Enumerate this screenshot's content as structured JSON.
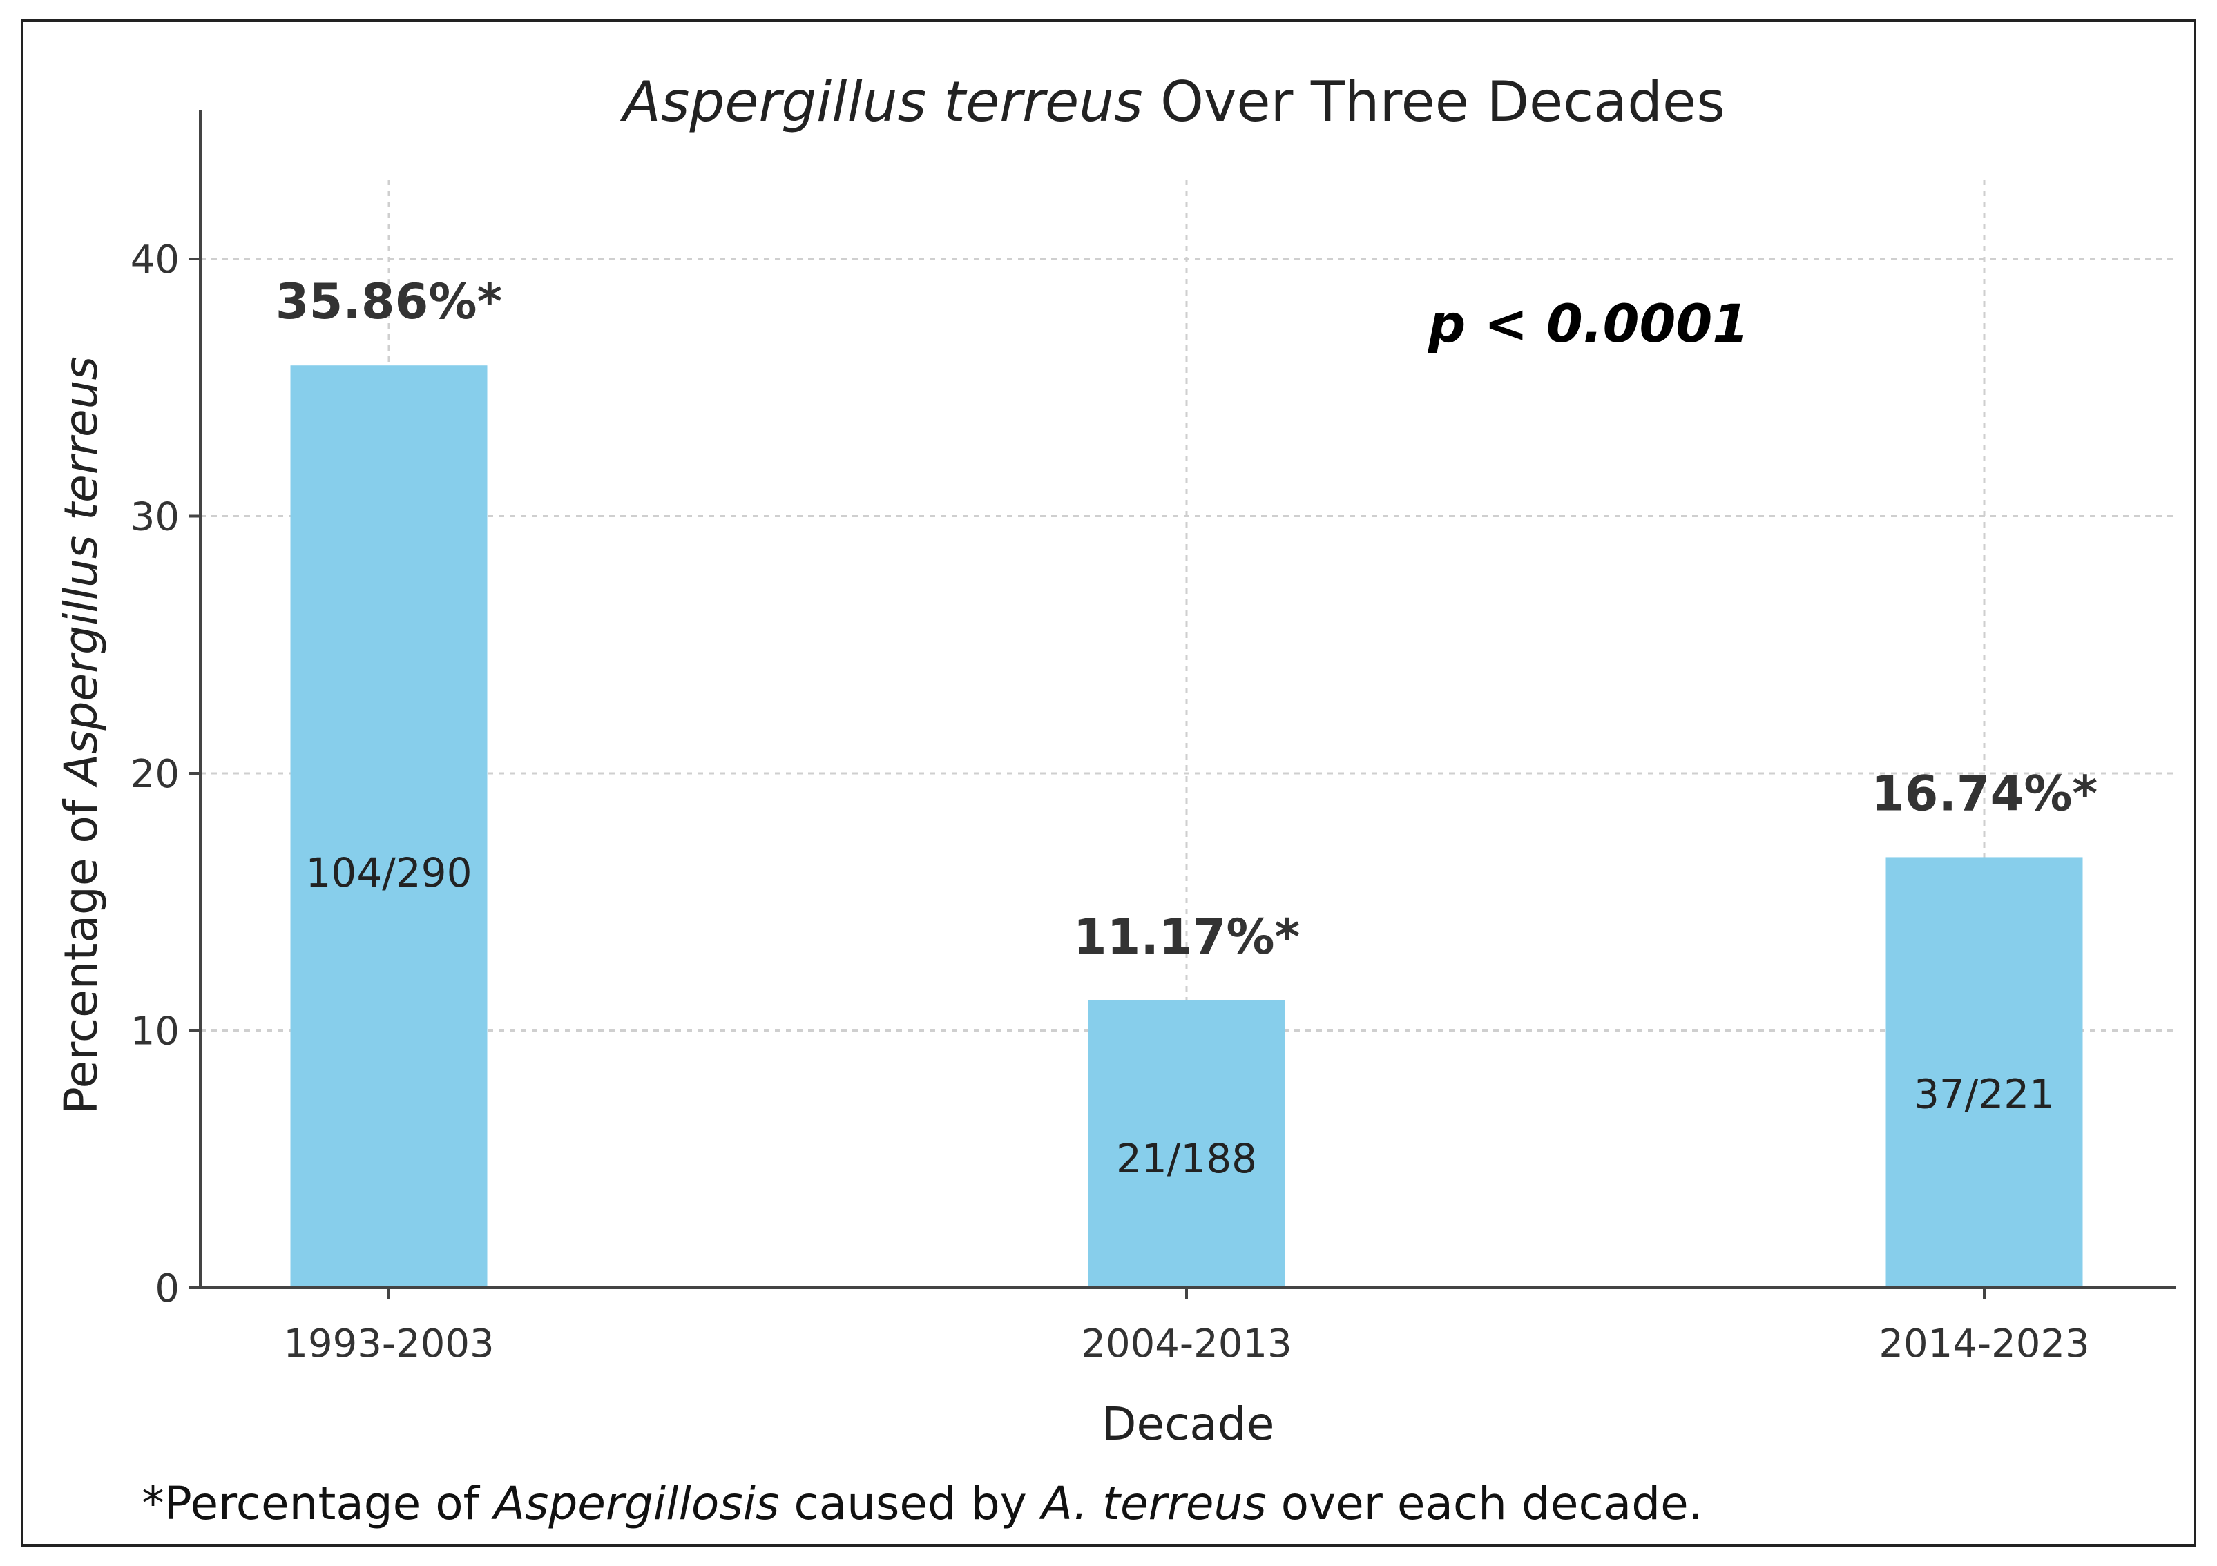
{
  "chart_data": {
    "type": "bar",
    "title_italic": "Aspergillus terreus",
    "title_rest": " Over Three Decades",
    "xlabel": "Decade",
    "ylabel_prefix": "Percentage of ",
    "ylabel_italic": "Aspergillus terreus",
    "categories": [
      "1993-2003",
      "2004-2013",
      "2014-2023"
    ],
    "values": [
      35.86,
      11.17,
      16.74
    ],
    "value_labels": [
      "35.86%*",
      "11.17%*",
      "16.74%*"
    ],
    "count_labels": [
      "104/290",
      "21/188",
      "37/221"
    ],
    "yticks": [
      0,
      10,
      20,
      30,
      40
    ],
    "ylim": [
      0,
      40
    ],
    "grid": true,
    "bar_color": "#87CEEB",
    "annotation": "p < 0.0001"
  },
  "footnote": {
    "part1": "*Percentage of ",
    "part2_italic": "Aspergillosis",
    "part3": " caused by ",
    "part4_italic": "A. terreus",
    "part5": " over each decade."
  }
}
